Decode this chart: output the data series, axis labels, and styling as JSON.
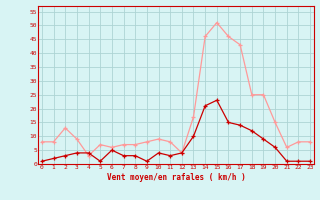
{
  "x": [
    0,
    1,
    2,
    3,
    4,
    5,
    6,
    7,
    8,
    9,
    10,
    11,
    12,
    13,
    14,
    15,
    16,
    17,
    18,
    19,
    20,
    21,
    22,
    23
  ],
  "vent_moyen": [
    1,
    2,
    3,
    4,
    4,
    1,
    5,
    3,
    3,
    1,
    4,
    3,
    4,
    10,
    21,
    23,
    15,
    14,
    12,
    9,
    6,
    1,
    1,
    1
  ],
  "vent_rafales": [
    8,
    8,
    13,
    9,
    3,
    7,
    6,
    7,
    7,
    8,
    9,
    8,
    4,
    17,
    46,
    51,
    46,
    43,
    25,
    25,
    15,
    6,
    8,
    8
  ],
  "bg_color": "#d8f4f4",
  "grid_color": "#aed4d4",
  "line_color_moyen": "#cc0000",
  "line_color_rafales": "#ff9999",
  "xlabel": "Vent moyen/en rafales ( km/h )",
  "yticks": [
    0,
    5,
    10,
    15,
    20,
    25,
    30,
    35,
    40,
    45,
    50,
    55
  ],
  "xticks": [
    0,
    1,
    2,
    3,
    4,
    5,
    6,
    7,
    8,
    9,
    10,
    11,
    12,
    13,
    14,
    15,
    16,
    17,
    18,
    19,
    20,
    21,
    22,
    23
  ],
  "ylim": [
    0,
    57
  ],
  "xlim": [
    -0.3,
    23.3
  ]
}
